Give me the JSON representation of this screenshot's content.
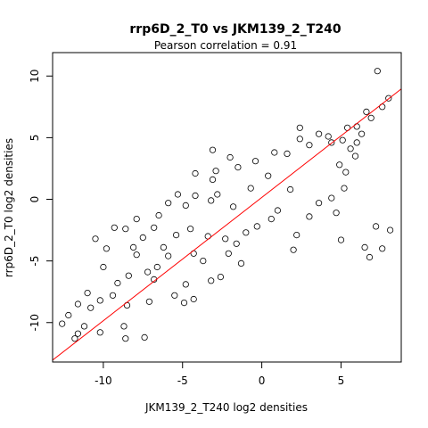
{
  "chart_data": {
    "type": "scatter",
    "title": "rrp6D_2_T0 vs JKM139_2_T240",
    "subtitle": "Pearson correlation =  0.91",
    "xlabel": "JKM139_2_T240 log2 densities",
    "ylabel": "rrp6D_2_T0 log2 densities",
    "xlim": [
      -13.2,
      8.8
    ],
    "ylim": [
      -13.2,
      11.9
    ],
    "xticks": [
      -10,
      -5,
      0,
      5
    ],
    "yticks": [
      -10,
      -5,
      0,
      5,
      10
    ],
    "grid": false,
    "legend": "none",
    "point_color": "#000000",
    "regression_line": {
      "slope": 1.0,
      "intercept": 0.15,
      "color": "#ff0000"
    },
    "correlation": 0.91,
    "points": [
      [
        7.3,
        10.4
      ],
      [
        8.0,
        8.2
      ],
      [
        7.6,
        7.5
      ],
      [
        6.6,
        7.1
      ],
      [
        6.9,
        6.6
      ],
      [
        2.4,
        5.8
      ],
      [
        5.4,
        5.8
      ],
      [
        6.0,
        5.9
      ],
      [
        6.3,
        5.3
      ],
      [
        4.4,
        4.6
      ],
      [
        -1.5,
        2.6
      ],
      [
        -2.9,
        2.3
      ],
      [
        -4.2,
        2.1
      ],
      [
        -3.1,
        1.6
      ],
      [
        -2.8,
        0.4
      ],
      [
        -4.2,
        0.3
      ],
      [
        -5.3,
        0.4
      ],
      [
        -5.9,
        -0.3
      ],
      [
        -4.8,
        -0.5
      ],
      [
        -3.2,
        -0.1
      ],
      [
        -6.5,
        -1.3
      ],
      [
        -7.9,
        -1.6
      ],
      [
        -6.8,
        -2.3
      ],
      [
        -8.6,
        -2.4
      ],
      [
        -9.3,
        -2.3
      ],
      [
        -7.5,
        -3.1
      ],
      [
        -10.5,
        -3.2
      ],
      [
        -8.1,
        -3.9
      ],
      [
        -9.8,
        -4.0
      ],
      [
        -6.2,
        -3.9
      ],
      [
        -10.0,
        -5.5
      ],
      [
        -8.4,
        -6.2
      ],
      [
        -9.1,
        -6.8
      ],
      [
        -7.2,
        -5.9
      ],
      [
        -6.8,
        -6.5
      ],
      [
        -9.4,
        -7.8
      ],
      [
        -11.0,
        -7.6
      ],
      [
        -10.2,
        -8.2
      ],
      [
        -10.8,
        -8.8
      ],
      [
        -11.6,
        -8.5
      ],
      [
        -12.2,
        -9.4
      ],
      [
        -12.6,
        -10.1
      ],
      [
        -11.2,
        -10.3
      ],
      [
        -11.6,
        -10.9
      ],
      [
        -11.8,
        -11.3
      ],
      [
        -10.2,
        -10.8
      ],
      [
        -8.7,
        -10.3
      ],
      [
        -8.6,
        -11.3
      ],
      [
        -7.4,
        -11.2
      ],
      [
        -8.5,
        -8.6
      ],
      [
        -7.1,
        -8.3
      ],
      [
        -4.9,
        -8.4
      ],
      [
        -4.3,
        -8.1
      ],
      [
        -5.5,
        -7.8
      ],
      [
        -4.8,
        -6.9
      ],
      [
        -3.2,
        -6.6
      ],
      [
        -2.6,
        -6.3
      ],
      [
        -1.3,
        -5.2
      ],
      [
        -2.1,
        -4.4
      ],
      [
        -1.6,
        -3.6
      ],
      [
        2.0,
        -4.1
      ],
      [
        5.0,
        -3.3
      ],
      [
        6.8,
        -4.7
      ],
      [
        6.5,
        -3.9
      ],
      [
        7.6,
        -4.0
      ],
      [
        7.2,
        -2.2
      ],
      [
        8.1,
        -2.5
      ],
      [
        4.7,
        -1.1
      ],
      [
        4.4,
        0.1
      ],
      [
        5.2,
        0.9
      ],
      [
        3.6,
        -0.3
      ],
      [
        3.0,
        -1.4
      ],
      [
        2.2,
        -2.9
      ],
      [
        -0.3,
        -2.2
      ],
      [
        0.6,
        -1.6
      ],
      [
        -1.0,
        -2.7
      ],
      [
        -2.3,
        -3.2
      ],
      [
        -3.4,
        -3.0
      ],
      [
        -4.5,
        -2.4
      ],
      [
        -5.4,
        -2.9
      ],
      [
        -5.9,
        -4.6
      ],
      [
        -4.3,
        -4.4
      ],
      [
        -3.7,
        -5.0
      ],
      [
        -6.6,
        -5.5
      ],
      [
        -7.9,
        -4.5
      ],
      [
        -3.1,
        4.0
      ],
      [
        -2.0,
        3.4
      ],
      [
        -0.4,
        3.1
      ],
      [
        0.8,
        3.8
      ],
      [
        1.6,
        3.7
      ],
      [
        2.4,
        4.9
      ],
      [
        3.0,
        4.4
      ],
      [
        3.6,
        5.3
      ],
      [
        4.2,
        5.1
      ],
      [
        5.1,
        4.8
      ],
      [
        5.6,
        4.1
      ],
      [
        6.0,
        4.6
      ],
      [
        5.9,
        3.5
      ],
      [
        4.9,
        2.8
      ],
      [
        5.3,
        2.2
      ],
      [
        1.0,
        -0.9
      ],
      [
        -0.7,
        0.9
      ],
      [
        0.4,
        1.9
      ],
      [
        -1.8,
        -0.6
      ],
      [
        1.8,
        0.8
      ]
    ]
  }
}
